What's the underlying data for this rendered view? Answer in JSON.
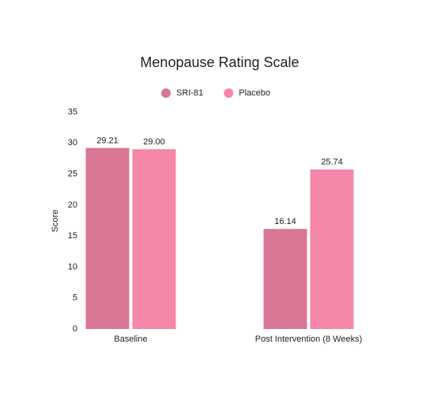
{
  "chart_data": {
    "type": "bar",
    "title": "Menopause Rating Scale",
    "y_label": "Score",
    "categories": [
      "Baseline",
      "Post Intervention (8 Weeks)"
    ],
    "series": [
      {
        "name": "SRI-81",
        "color": "#d97795",
        "values": [
          29.21,
          16.14
        ],
        "value_labels": [
          "29.21",
          "16.14"
        ]
      },
      {
        "name": "Placebo",
        "color": "#f487a7",
        "values": [
          29.0,
          25.74
        ],
        "value_labels": [
          "29.00",
          "25.74"
        ]
      }
    ],
    "ylim": [
      0,
      35
    ],
    "yticks": [
      0,
      5,
      10,
      15,
      20,
      25,
      30,
      35
    ],
    "grid": false
  }
}
